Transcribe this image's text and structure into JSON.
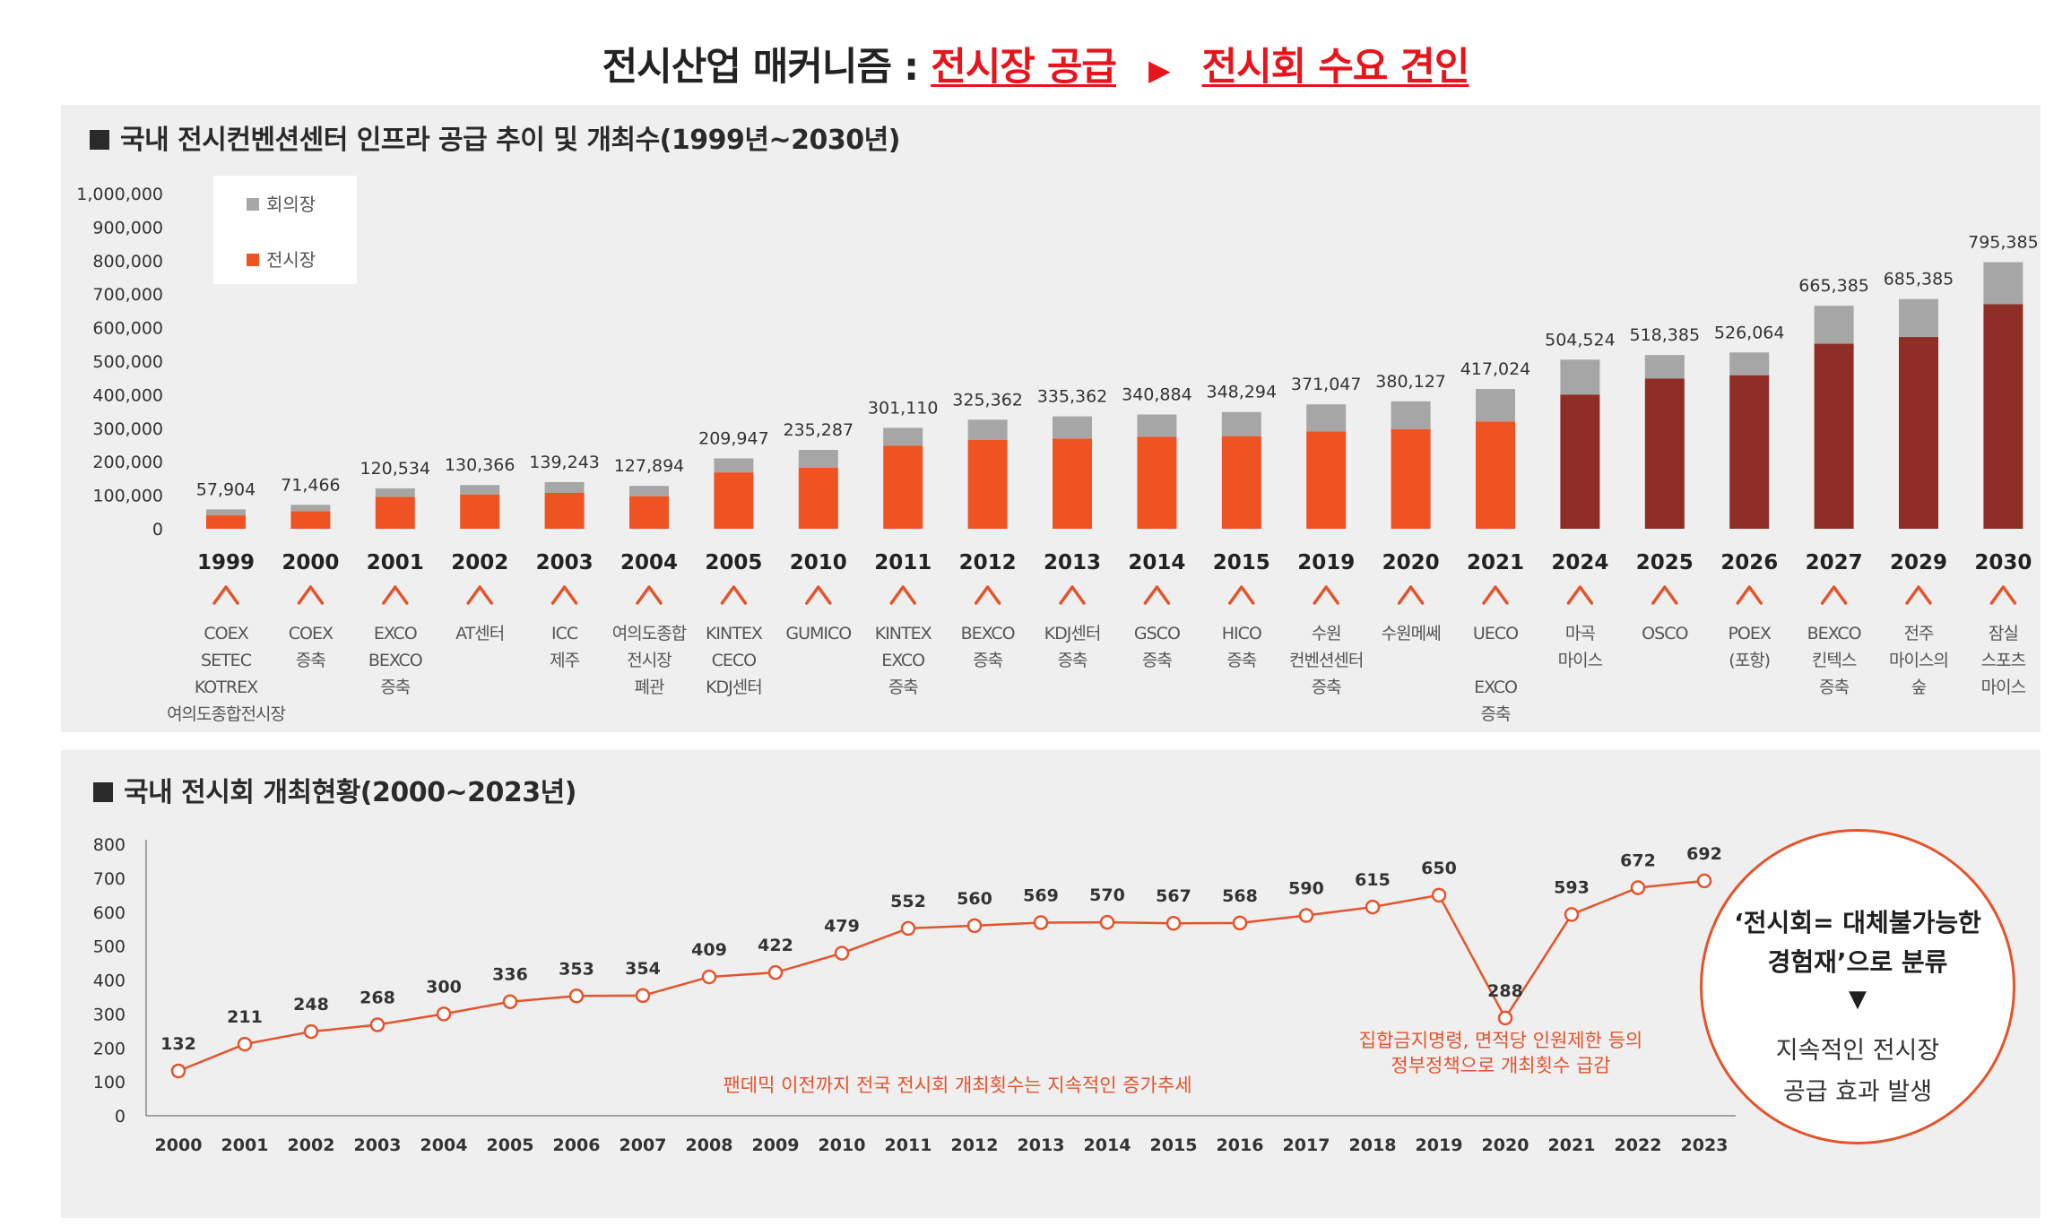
{
  "page": {
    "title_black": "전시산업 매커니즘 :",
    "title_red_1": "전시장 공급",
    "title_arrow": "▶",
    "title_red_2": "전시회 수요 견인"
  },
  "colors": {
    "expo_orange": "#ef5322",
    "expo_dark": "#8f2e26",
    "meeting_gray": "#a6a6a6",
    "panel_bg": "#efefef",
    "accent_red": "#e8141c",
    "line_orange": "#e5532b"
  },
  "section1": {
    "title": "국내 전시컨벤션센터 인프라 공급 추이 및 개최수(1999년~2030년)"
  },
  "section2": {
    "title": "국내 전시회 개최현황(2000~2023년)"
  },
  "circle_note": {
    "line1": "‘전시회= 대체불가능한",
    "line2": "경험재’으로 분류",
    "triangle": "▼",
    "line3": "지속적인 전시장",
    "line4": "공급 효과 발생"
  },
  "chart_data": [
    {
      "type": "bar",
      "stacked": true,
      "title": "국내 전시컨벤션센터 인프라 공급 추이 및 개최수(1999년~2030년)",
      "legend": [
        "회의장",
        "전시장"
      ],
      "legend_placement": "top-left",
      "ylim": [
        0,
        1000000
      ],
      "yticks": [
        "1,000,000",
        "900,000",
        "800,000",
        "700,000",
        "600,000",
        "500,000",
        "400,000",
        "300,000",
        "200,000",
        "100,000",
        "0"
      ],
      "categories": [
        "1999",
        "2000",
        "2001",
        "2002",
        "2003",
        "2004",
        "2005",
        "2010",
        "2011",
        "2012",
        "2013",
        "2014",
        "2015",
        "2019",
        "2020",
        "2021",
        "2024",
        "2025",
        "2026",
        "2027",
        "2029",
        "2030"
      ],
      "totals": [
        57904,
        71466,
        120534,
        130366,
        139243,
        127894,
        209947,
        235287,
        301110,
        325362,
        335362,
        340884,
        348294,
        371047,
        380127,
        417024,
        504524,
        518385,
        526064,
        665385,
        685385,
        795385
      ],
      "total_labels": [
        "57,904",
        "71,466",
        "120,534",
        "130,366",
        "139,243",
        "127,894",
        "209,947",
        "235,287",
        "301,110",
        "325,362",
        "335,362",
        "340,884",
        "348,294",
        "371,047",
        "380,127",
        "417,024",
        "504,524",
        "518,385",
        "526,064",
        "665,385",
        "685,385",
        "795,385"
      ],
      "series": [
        {
          "name": "전시장",
          "values": [
            40000,
            52000,
            95000,
            102000,
            107000,
            97000,
            168000,
            182000,
            248000,
            265000,
            269000,
            274000,
            276000,
            290000,
            297000,
            320000,
            400000,
            448000,
            458000,
            552000,
            572000,
            670000
          ]
        },
        {
          "name": "회의장",
          "values": [
            17904,
            19466,
            25534,
            28366,
            32243,
            30894,
            41947,
            53287,
            53110,
            60362,
            66362,
            66884,
            72294,
            81047,
            83127,
            97024,
            104524,
            70385,
            68064,
            113385,
            113385,
            125385
          ]
        }
      ],
      "planned_from_index": 16,
      "annotations": [
        [
          "COEX",
          "SETEC",
          "KOTREX",
          "여의도종합전시장"
        ],
        [
          "COEX",
          "증축"
        ],
        [
          "EXCO",
          "BEXCO",
          "증축"
        ],
        [
          "AT센터"
        ],
        [
          "ICC",
          "제주"
        ],
        [
          "여의도종합",
          "전시장",
          "폐관"
        ],
        [
          "KINTEX",
          "CECO",
          "KDJ센터"
        ],
        [
          "GUMICO"
        ],
        [
          "KINTEX",
          "EXCO",
          "증축"
        ],
        [
          "BEXCO",
          "증축"
        ],
        [
          "KDJ센터",
          "증축"
        ],
        [
          "GSCO",
          "증축"
        ],
        [
          "HICO",
          "증축"
        ],
        [
          "수원",
          "컨벤션센터",
          "증축"
        ],
        [
          "수원메쎄"
        ],
        [
          "UECO",
          "",
          "EXCO",
          "증축"
        ],
        [
          "마곡",
          "마이스"
        ],
        [
          "OSCO"
        ],
        [
          "POEX",
          "(포항)"
        ],
        [
          "BEXCO",
          "킨텍스",
          "증축"
        ],
        [
          "전주",
          "마이스의",
          "숲"
        ],
        [
          "잠실",
          "스포츠",
          "마이스"
        ]
      ],
      "annotation_marker": "^"
    },
    {
      "type": "line",
      "title": "국내 전시회 개최현황(2000~2023년)",
      "ylim": [
        0,
        800
      ],
      "yticks": [
        "800",
        "700",
        "600",
        "500",
        "400",
        "300",
        "200",
        "100",
        "0"
      ],
      "x": [
        "2000",
        "2001",
        "2002",
        "2003",
        "2004",
        "2005",
        "2006",
        "2007",
        "2008",
        "2009",
        "2010",
        "2011",
        "2012",
        "2013",
        "2014",
        "2015",
        "2016",
        "2017",
        "2018",
        "2019",
        "2020",
        "2021",
        "2022",
        "2023"
      ],
      "values": [
        132,
        211,
        248,
        268,
        300,
        336,
        353,
        354,
        409,
        422,
        479,
        552,
        560,
        569,
        570,
        567,
        568,
        590,
        615,
        650,
        288,
        593,
        672,
        692
      ],
      "annotations": [
        {
          "text": "팬데믹 이전까지 전국 전시회 개최횟수는 지속적인 증가추세"
        },
        {
          "text_line1": "집합금지명령, 면적당 인원제한 등의",
          "text_line2": "정부정책으로 개최횟수 급감"
        }
      ]
    }
  ]
}
